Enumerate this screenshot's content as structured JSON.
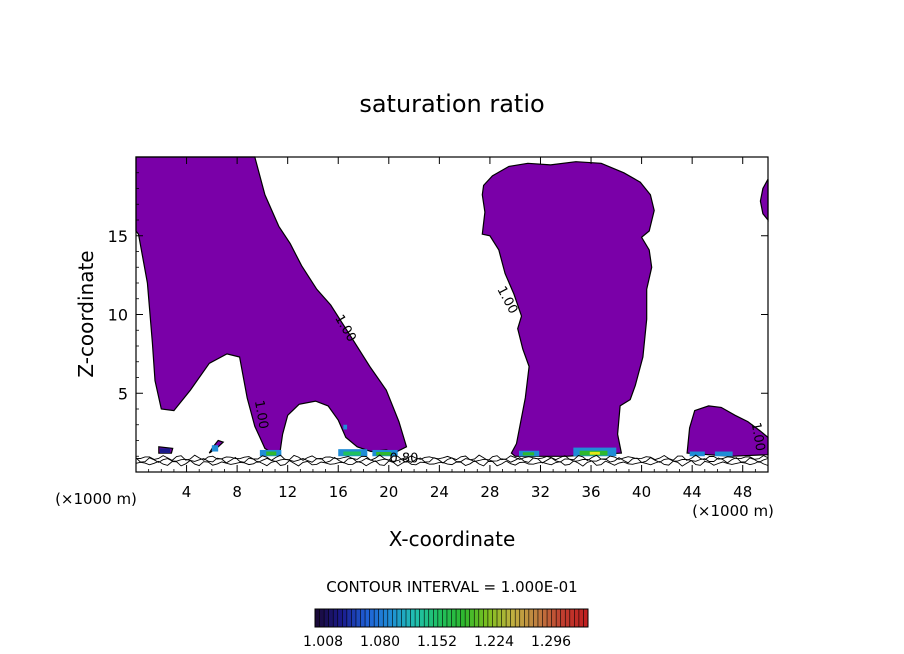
{
  "chart_data": {
    "type": "heatmap",
    "title": "saturation ratio",
    "xlabel": "X-coordinate",
    "ylabel": "Z-coordinate",
    "x_unit_left": "(×1000 m)",
    "x_unit_right": "(×1000 m)",
    "xlim": [
      0,
      50
    ],
    "ylim": [
      0,
      20
    ],
    "x_ticks": [
      4,
      8,
      12,
      16,
      20,
      24,
      28,
      32,
      36,
      40,
      44,
      48
    ],
    "y_ticks": [
      5,
      10,
      15
    ],
    "contour_labels": [
      {
        "text": "1.00",
        "x": 16.3,
        "y": 9.0,
        "angle": 60
      },
      {
        "text": "1.00",
        "x": 29.1,
        "y": 10.8,
        "angle": 62
      },
      {
        "text": "1.00",
        "x": 9.6,
        "y": 3.6,
        "angle": 80
      },
      {
        "text": "1.00",
        "x": 48.9,
        "y": 2.2,
        "angle": 80
      },
      {
        "text": "0.80",
        "x": 21.2,
        "y": 0.6,
        "angle": 0
      }
    ],
    "regions": [
      {
        "name": "supersaturated-plume-west",
        "fill": "#7a00a8",
        "points": [
          [
            0,
            20
          ],
          [
            9.4,
            20
          ],
          [
            10.2,
            17.6
          ],
          [
            11.3,
            15.6
          ],
          [
            12.2,
            14.5
          ],
          [
            13.1,
            13.1
          ],
          [
            14.3,
            11.6
          ],
          [
            15.4,
            10.6
          ],
          [
            17.0,
            8.6
          ],
          [
            18.5,
            6.7
          ],
          [
            19.8,
            5.2
          ],
          [
            20.8,
            3.2
          ],
          [
            21.4,
            1.6
          ],
          [
            20.4,
            1.2
          ],
          [
            19.8,
            1.4
          ],
          [
            18.6,
            1.3
          ],
          [
            17.5,
            1.6
          ],
          [
            16.6,
            2.2
          ],
          [
            16.0,
            3.3
          ],
          [
            15.2,
            4.2
          ],
          [
            14.2,
            4.5
          ],
          [
            12.9,
            4.3
          ],
          [
            12.0,
            3.6
          ],
          [
            11.6,
            2.4
          ],
          [
            11.4,
            1.3
          ],
          [
            10.8,
            1.2
          ],
          [
            10.2,
            1.5
          ],
          [
            9.8,
            2.2
          ],
          [
            9.4,
            2.9
          ],
          [
            8.8,
            4.7
          ],
          [
            8.2,
            7.3
          ],
          [
            7.2,
            7.5
          ],
          [
            5.8,
            6.9
          ],
          [
            4.3,
            5.2
          ],
          [
            3.0,
            3.9
          ],
          [
            2.0,
            4.0
          ],
          [
            1.5,
            5.8
          ],
          [
            1.3,
            8.2
          ],
          [
            0.9,
            12.0
          ],
          [
            0.2,
            15.1
          ],
          [
            0,
            15.3
          ]
        ]
      },
      {
        "name": "supersaturated-plume-center",
        "fill": "#7a00a8",
        "points": [
          [
            27.5,
            18.2
          ],
          [
            28.2,
            18.8
          ],
          [
            29.5,
            19.4
          ],
          [
            31.0,
            19.6
          ],
          [
            32.8,
            19.5
          ],
          [
            34.8,
            19.7
          ],
          [
            36.8,
            19.6
          ],
          [
            38.6,
            19.0
          ],
          [
            39.9,
            18.4
          ],
          [
            40.7,
            17.6
          ],
          [
            41.0,
            16.6
          ],
          [
            40.6,
            15.3
          ],
          [
            40.0,
            14.9
          ],
          [
            40.6,
            14.1
          ],
          [
            40.8,
            13.0
          ],
          [
            40.4,
            11.6
          ],
          [
            40.4,
            9.7
          ],
          [
            40.1,
            7.3
          ],
          [
            39.5,
            5.5
          ],
          [
            39.1,
            4.6
          ],
          [
            38.3,
            4.2
          ],
          [
            38.1,
            2.4
          ],
          [
            38.4,
            1.2
          ],
          [
            34.0,
            1.0
          ],
          [
            30.0,
            1.0
          ],
          [
            29.7,
            1.2
          ],
          [
            30.1,
            1.8
          ],
          [
            30.8,
            4.7
          ],
          [
            31.1,
            6.7
          ],
          [
            30.6,
            7.8
          ],
          [
            30.2,
            9.1
          ],
          [
            30.5,
            9.9
          ],
          [
            29.9,
            11.3
          ],
          [
            29.2,
            12.6
          ],
          [
            28.7,
            14.1
          ],
          [
            28.0,
            15.0
          ],
          [
            27.4,
            15.1
          ],
          [
            27.6,
            16.5
          ],
          [
            27.4,
            17.6
          ]
        ]
      },
      {
        "name": "supersaturated-plume-east-low",
        "fill": "#7a00a8",
        "points": [
          [
            43.6,
            1.2
          ],
          [
            43.8,
            2.8
          ],
          [
            44.2,
            3.9
          ],
          [
            45.3,
            4.2
          ],
          [
            46.3,
            4.1
          ],
          [
            47.4,
            3.6
          ],
          [
            48.4,
            3.2
          ],
          [
            49.4,
            2.6
          ],
          [
            50.0,
            2.2
          ],
          [
            50.0,
            1.1
          ],
          [
            47.0,
            1.0
          ]
        ]
      },
      {
        "name": "supersaturated-plume-east-top",
        "fill": "#7a00a8",
        "points": [
          [
            50.0,
            18.6
          ],
          [
            49.6,
            18.0
          ],
          [
            49.4,
            17.2
          ],
          [
            49.6,
            16.4
          ],
          [
            50.0,
            16.0
          ]
        ]
      },
      {
        "name": "supersaturated-spot-2",
        "fill": "#7a00a8",
        "points": [
          [
            1.8,
            1.2
          ],
          [
            2.8,
            1.2
          ],
          [
            2.9,
            1.5
          ],
          [
            1.8,
            1.6
          ]
        ]
      },
      {
        "name": "supersaturated-spot-6",
        "fill": "#7a00a8",
        "points": [
          [
            5.8,
            1.2
          ],
          [
            6.5,
            1.6
          ],
          [
            6.9,
            1.9
          ],
          [
            6.5,
            2.0
          ],
          [
            6.1,
            1.6
          ]
        ]
      }
    ],
    "cells": [
      {
        "x": 9.8,
        "w": 1.7,
        "y": 1.0,
        "h": 0.4,
        "color": "#1f8dd6"
      },
      {
        "x": 10.3,
        "w": 0.8,
        "y": 1.05,
        "h": 0.25,
        "color": "#2eb82e"
      },
      {
        "x": 16.0,
        "w": 2.3,
        "y": 1.0,
        "h": 0.45,
        "color": "#1f8dd6"
      },
      {
        "x": 16.4,
        "w": 1.4,
        "y": 1.05,
        "h": 0.25,
        "color": "#20c060"
      },
      {
        "x": 18.7,
        "w": 2.0,
        "y": 1.0,
        "h": 0.4,
        "color": "#1f8dd6"
      },
      {
        "x": 19.0,
        "w": 1.2,
        "y": 1.05,
        "h": 0.22,
        "color": "#2eb82e"
      },
      {
        "x": 30.3,
        "w": 1.6,
        "y": 1.0,
        "h": 0.35,
        "color": "#1f8dd6"
      },
      {
        "x": 30.6,
        "w": 0.9,
        "y": 1.05,
        "h": 0.2,
        "color": "#2eb82e"
      },
      {
        "x": 34.6,
        "w": 3.4,
        "y": 1.0,
        "h": 0.55,
        "color": "#1f8dd6"
      },
      {
        "x": 35.1,
        "w": 2.2,
        "y": 1.05,
        "h": 0.3,
        "color": "#2eb82e"
      },
      {
        "x": 35.9,
        "w": 0.8,
        "y": 1.1,
        "h": 0.18,
        "color": "#e6e619"
      },
      {
        "x": 43.8,
        "w": 1.2,
        "y": 1.0,
        "h": 0.3,
        "color": "#1f8dd6"
      },
      {
        "x": 45.8,
        "w": 1.4,
        "y": 1.0,
        "h": 0.3,
        "color": "#1f8dd6"
      },
      {
        "x": 1.9,
        "w": 0.8,
        "y": 1.2,
        "h": 0.3,
        "color": "#1a1a8c"
      },
      {
        "x": 6.0,
        "w": 0.5,
        "y": 1.3,
        "h": 0.4,
        "color": "#1f8dd6"
      },
      {
        "x": 16.4,
        "w": 0.3,
        "y": 2.7,
        "h": 0.3,
        "color": "#1f8dd6"
      }
    ],
    "surface_contours": [
      {
        "y": 0.55
      },
      {
        "y": 0.75
      },
      {
        "y": 0.9
      }
    ],
    "legend": {
      "title": "CONTOUR INTERVAL = 1.000E-01",
      "ticks": [
        "1.008",
        "1.080",
        "1.152",
        "1.224",
        "1.296"
      ],
      "colors": [
        "#1a0a3a",
        "#1a1a8c",
        "#1f5fd6",
        "#1f8dd6",
        "#20c0b0",
        "#20c060",
        "#2eb82e",
        "#80c020",
        "#c0b040",
        "#c08040",
        "#c04030",
        "#c02020"
      ]
    }
  }
}
